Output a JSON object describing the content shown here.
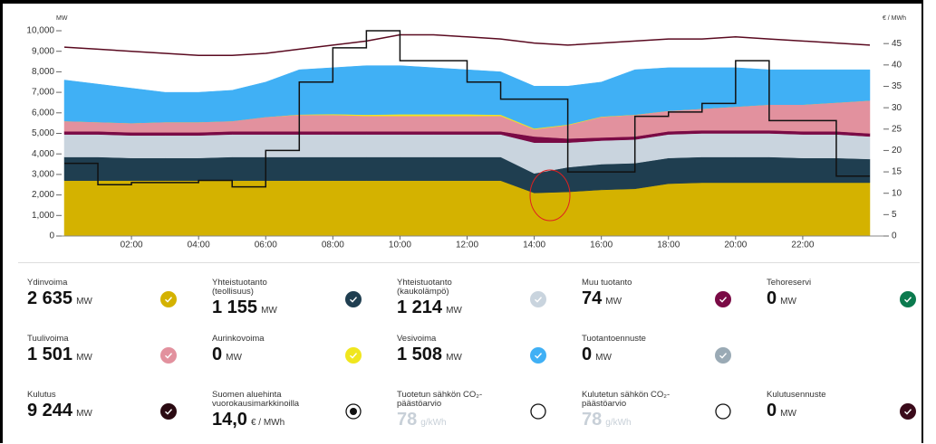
{
  "chart_data": {
    "type": "area",
    "ylabel": "MW",
    "y2label": "€ / MWh",
    "xlim": [
      0,
      24
    ],
    "xticks": [
      {
        "value": 2,
        "label": "02:00"
      },
      {
        "value": 4,
        "label": "04:00"
      },
      {
        "value": 6,
        "label": "06:00"
      },
      {
        "value": 8,
        "label": "08:00"
      },
      {
        "value": 10,
        "label": "10:00"
      },
      {
        "value": 12,
        "label": "12:00"
      },
      {
        "value": 14,
        "label": "14:00"
      },
      {
        "value": 16,
        "label": "16:00"
      },
      {
        "value": 18,
        "label": "18:00"
      },
      {
        "value": 20,
        "label": "20:00"
      },
      {
        "value": 22,
        "label": "22:00"
      }
    ],
    "ylim": [
      0,
      10000
    ],
    "yticks": [
      0,
      {
        "value": 1000,
        "label": "1,000"
      },
      {
        "value": 2000,
        "label": "2,000"
      },
      {
        "value": 3000,
        "label": "3,000"
      },
      {
        "value": 4000,
        "label": "4,000"
      },
      {
        "value": 5000,
        "label": "5,000"
      },
      {
        "value": 6000,
        "label": "6,000"
      },
      {
        "value": 7000,
        "label": "7,000"
      },
      {
        "value": 8000,
        "label": "8,000"
      },
      {
        "value": 9000,
        "label": "9,000"
      },
      {
        "value": 10000,
        "label": "10,000"
      }
    ],
    "y2lim": [
      0,
      48
    ],
    "y2ticks": [
      0,
      5,
      10,
      15,
      20,
      25,
      30,
      35,
      40,
      45
    ],
    "x": [
      0,
      1,
      2,
      3,
      4,
      5,
      6,
      7,
      8,
      9,
      10,
      11,
      12,
      13,
      14,
      15,
      16,
      17,
      18,
      19,
      20,
      21,
      22,
      23,
      24
    ],
    "series": [
      {
        "kind": "area",
        "color": "#d4b200",
        "values": [
          2700,
          2700,
          2700,
          2700,
          2700,
          2700,
          2700,
          2700,
          2700,
          2700,
          2700,
          2700,
          2700,
          2700,
          2100,
          2150,
          2250,
          2300,
          2550,
          2600,
          2600,
          2600,
          2600,
          2600,
          2600
        ]
      },
      {
        "kind": "area",
        "color": "#1f3e50",
        "values": [
          1150,
          1150,
          1100,
          1100,
          1100,
          1150,
          1150,
          1150,
          1150,
          1150,
          1150,
          1150,
          1150,
          1150,
          950,
          1200,
          1250,
          1250,
          1250,
          1250,
          1250,
          1250,
          1200,
          1200,
          1150
        ]
      },
      {
        "kind": "area",
        "color": "#c9d4de",
        "values": [
          1100,
          1100,
          1100,
          1100,
          1100,
          1100,
          1100,
          1100,
          1100,
          1100,
          1100,
          1100,
          1100,
          1100,
          1500,
          1200,
          1150,
          1150,
          1150,
          1150,
          1150,
          1150,
          1150,
          1150,
          1100
        ]
      },
      {
        "kind": "area",
        "color": "#7a0a45",
        "values": [
          150,
          150,
          150,
          150,
          150,
          150,
          150,
          150,
          150,
          150,
          150,
          150,
          150,
          150,
          300,
          200,
          150,
          150,
          150,
          150,
          150,
          150,
          150,
          150,
          150
        ]
      },
      {
        "kind": "area",
        "color": "#e2919e",
        "values": [
          500,
          450,
          450,
          500,
          500,
          500,
          700,
          800,
          800,
          750,
          750,
          750,
          750,
          750,
          350,
          650,
          1000,
          1050,
          1000,
          1050,
          1150,
          1250,
          1300,
          1400,
          1600
        ]
      },
      {
        "kind": "area",
        "color": "#f0e61e",
        "values": [
          0,
          0,
          0,
          0,
          0,
          0,
          0,
          20,
          40,
          60,
          80,
          80,
          80,
          60,
          40,
          30,
          20,
          10,
          0,
          0,
          0,
          0,
          0,
          0,
          0
        ]
      },
      {
        "kind": "area",
        "color": "#40b0f5",
        "values": [
          2000,
          1850,
          1700,
          1450,
          1450,
          1500,
          1700,
          2180,
          2260,
          2390,
          2370,
          2270,
          2170,
          2090,
          2060,
          1870,
          1680,
          2190,
          2100,
          2000,
          1900,
          1700,
          1700,
          1600,
          1500
        ]
      },
      {
        "kind": "line",
        "color": "#5a0a20",
        "values": [
          9200,
          9100,
          9000,
          8900,
          8800,
          8800,
          8900,
          9100,
          9300,
          9500,
          9800,
          9800,
          9700,
          9600,
          9400,
          9300,
          9400,
          9500,
          9600,
          9600,
          9700,
          9600,
          9500,
          9400,
          9300
        ]
      },
      {
        "kind": "step",
        "axis": "y2",
        "color": "#111111",
        "x": [
          0,
          1,
          2,
          3,
          4,
          5,
          6,
          7,
          8,
          9,
          10,
          11,
          12,
          13,
          14,
          15,
          16,
          17,
          18,
          19,
          20,
          21,
          22,
          23
        ],
        "values": [
          17,
          12,
          12.5,
          12.5,
          13,
          11.5,
          20,
          36,
          44,
          48,
          41,
          41,
          36,
          32,
          32,
          15,
          15,
          28,
          29,
          31,
          41,
          27,
          27,
          14
        ]
      }
    ]
  },
  "tiles": [
    [
      {
        "label": "Ydinvoima",
        "value": "2 635",
        "unit": "MW",
        "color": "#d4b200"
      },
      {
        "label": "Yhteistuotanto\n(teollisuus)",
        "value": "1 155",
        "unit": "MW",
        "color": "#1f3e50"
      },
      {
        "label": "Yhteistuotanto\n(kaukolämpö)",
        "value": "1 214",
        "unit": "MW",
        "color": "#c9d4de"
      },
      {
        "label": "Muu tuotanto",
        "value": "74",
        "unit": "MW",
        "color": "#7a0a45"
      },
      {
        "label": "Tehoreservi",
        "value": "0",
        "unit": "MW",
        "color": "#0b7a4e"
      }
    ],
    [
      {
        "label": "Tuulivoima",
        "value": "1 501",
        "unit": "MW",
        "color": "#e2919e"
      },
      {
        "label": "Aurinkovoima",
        "value": "0",
        "unit": "MW",
        "color": "#f0e61e"
      },
      {
        "label": "Vesivoima",
        "value": "1 508",
        "unit": "MW",
        "color": "#40b0f5"
      },
      {
        "label": "Tuotantoennuste",
        "value": "0",
        "unit": "MW",
        "color": "#9aaab5"
      }
    ],
    [
      {
        "label": "Kulutus",
        "value": "9 244",
        "unit": "MW",
        "color": "#2a0a12"
      },
      {
        "label": "Suomen aluehinta\nvuorokausimarkkinoilla",
        "value": "14,0",
        "unit": "€ / MWh",
        "control": "radio",
        "selected": true
      },
      {
        "label": "Tuotetun sähkön CO₂-\npäästöarvio",
        "value": "78",
        "unit": "g/kWh",
        "control": "radio",
        "selected": false,
        "muted": true
      },
      {
        "label": "Kulutetun sähkön CO₂-\npäästöarvio",
        "value": "78",
        "unit": "g/kWh",
        "control": "radio",
        "selected": false,
        "muted": true
      },
      {
        "label": "Kulutusennuste",
        "value": "0",
        "unit": "MW",
        "color": "#3a0a1a"
      }
    ]
  ]
}
